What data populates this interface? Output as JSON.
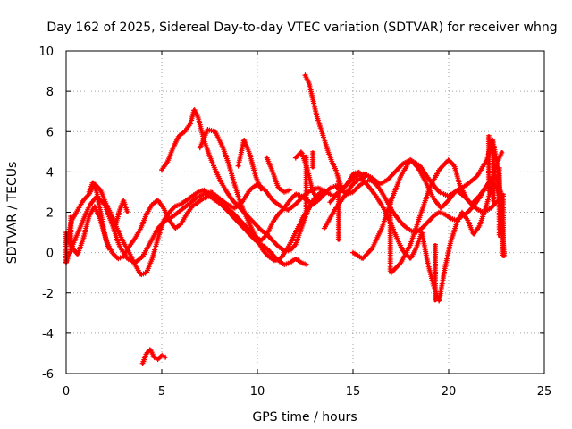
{
  "chart_data": {
    "type": "scatter",
    "title": "Day 162 of 2025, Sidereal Day-to-day VTEC variation (SDTVAR) for receiver whng",
    "xlabel": "GPS time / hours",
    "ylabel": "SDTVAR / TECUs",
    "xlim": [
      0,
      25
    ],
    "ylim": [
      -6,
      10
    ],
    "x_ticks": [
      0,
      5,
      10,
      15,
      20,
      25
    ],
    "y_ticks": [
      -6,
      -4,
      -2,
      0,
      2,
      4,
      6,
      8,
      10
    ],
    "grid": true,
    "marker": "plus",
    "color": "#ff0000",
    "series": [
      {
        "name": "trace-1",
        "x": [
          0.0,
          0.3,
          0.6,
          0.9,
          1.2,
          1.5,
          1.8,
          2.1,
          2.4,
          2.7,
          3.0,
          3.3,
          3.6,
          3.9,
          4.2,
          4.5,
          4.8,
          5.1,
          5.4,
          5.7,
          6.0,
          6.3,
          6.6,
          6.9,
          7.2,
          7.5,
          7.8,
          8.1,
          8.4,
          8.7,
          9.0,
          9.3,
          9.6,
          9.9,
          10.2,
          10.5,
          10.8,
          11.1,
          11.4,
          11.7,
          12.0,
          12.3,
          12.6
        ],
        "y": [
          0.5,
          1.6,
          2.1,
          2.6,
          2.9,
          3.4,
          3.1,
          2.4,
          1.8,
          1.1,
          0.5,
          0.0,
          -0.6,
          -1.1,
          -1.0,
          -0.3,
          0.7,
          1.6,
          2.0,
          2.3,
          2.4,
          2.6,
          2.8,
          3.0,
          3.1,
          2.9,
          2.7,
          2.4,
          2.1,
          1.8,
          1.5,
          1.2,
          0.9,
          0.6,
          0.4,
          0.2,
          -0.1,
          -0.4,
          -0.6,
          -0.5,
          -0.3,
          -0.5,
          -0.6
        ]
      },
      {
        "name": "trace-2",
        "x": [
          0.0,
          0.4,
          0.8,
          1.2,
          1.6,
          2.0,
          2.4,
          2.8,
          3.2,
          3.6,
          4.0,
          4.4,
          4.8,
          5.2,
          5.6,
          6.0,
          6.4,
          6.8,
          7.2,
          7.6,
          8.0,
          8.4,
          8.8,
          9.2,
          9.6,
          10.0,
          10.4,
          10.8,
          11.2,
          11.6,
          12.0,
          12.4,
          12.8,
          13.2,
          13.6,
          14.0,
          14.4,
          14.8,
          15.2,
          15.6,
          16.0,
          16.4,
          16.8,
          17.2,
          17.6,
          18.0,
          18.4,
          18.8,
          19.2,
          19.6,
          20.0,
          20.4,
          20.8,
          21.2,
          21.6,
          22.0,
          22.4,
          22.8
        ],
        "y": [
          -0.5,
          0.5,
          1.4,
          2.3,
          2.8,
          2.4,
          1.4,
          0.3,
          -0.3,
          -0.5,
          -0.2,
          0.5,
          1.2,
          1.6,
          1.8,
          2.1,
          2.4,
          2.7,
          2.9,
          3.0,
          2.7,
          2.4,
          2.2,
          2.5,
          3.1,
          3.4,
          3.1,
          2.6,
          2.3,
          2.1,
          2.4,
          2.8,
          3.1,
          3.2,
          3.0,
          2.8,
          3.1,
          3.5,
          3.8,
          3.9,
          3.7,
          3.4,
          3.6,
          4.0,
          4.4,
          4.6,
          4.2,
          3.5,
          2.7,
          2.2,
          2.6,
          3.1,
          2.8,
          2.4,
          2.8,
          3.3,
          3.9,
          2.8
        ]
      },
      {
        "name": "trace-3",
        "x": [
          0.0,
          0.3,
          0.6,
          0.9,
          1.2,
          1.5,
          1.8,
          2.1,
          2.4,
          2.7,
          3.0,
          3.3,
          3.6,
          3.9,
          4.2,
          4.5,
          4.8,
          5.1,
          5.4,
          5.7,
          6.0,
          6.3,
          6.6,
          6.9,
          7.2,
          7.5,
          7.8,
          8.1,
          8.4,
          8.7,
          9.0,
          9.3,
          9.6,
          9.9,
          10.2,
          10.5,
          10.8,
          11.1,
          11.4,
          11.7,
          12.0,
          12.3,
          12.6,
          12.9,
          13.2,
          13.5,
          13.8,
          14.1,
          14.4,
          14.7,
          15.0,
          15.3,
          15.6,
          15.9,
          16.2,
          16.5,
          16.8,
          17.1,
          17.4,
          17.7,
          18.0,
          18.3,
          18.6,
          18.9,
          19.2,
          19.5,
          19.8,
          20.1,
          20.4,
          20.7,
          21.0,
          21.3,
          21.6,
          21.9,
          22.2,
          22.5,
          22.8
        ],
        "y": [
          0.8,
          0.3,
          -0.1,
          0.7,
          1.8,
          2.3,
          1.6,
          0.6,
          0.0,
          -0.3,
          -0.2,
          0.3,
          0.7,
          1.2,
          1.9,
          2.4,
          2.6,
          2.2,
          1.6,
          1.2,
          1.4,
          1.9,
          2.3,
          2.5,
          2.7,
          2.8,
          2.6,
          2.4,
          2.2,
          2.0,
          1.7,
          1.4,
          1.1,
          0.8,
          0.6,
          0.9,
          1.5,
          1.9,
          2.2,
          2.6,
          2.9,
          2.8,
          2.6,
          2.4,
          2.6,
          2.9,
          3.2,
          3.3,
          3.1,
          2.9,
          3.0,
          3.3,
          3.5,
          3.6,
          3.4,
          3.0,
          2.5,
          2.0,
          1.6,
          1.3,
          1.1,
          1.0,
          1.2,
          1.5,
          1.8,
          2.0,
          1.9,
          1.7,
          1.6,
          1.8,
          2.0,
          2.3,
          2.7,
          3.2,
          3.6,
          3.2,
          2.3
        ]
      },
      {
        "name": "trace-4",
        "x": [
          5.0,
          5.3,
          5.6,
          5.9,
          6.2,
          6.5,
          6.7,
          6.9,
          7.2,
          7.5,
          7.8,
          8.1,
          8.4,
          8.7,
          9.0,
          9.3,
          9.6,
          9.9,
          10.2,
          10.5,
          10.8,
          11.1,
          11.4,
          11.7,
          12.0,
          12.3,
          12.6,
          12.9,
          13.2,
          13.5
        ],
        "y": [
          4.1,
          4.5,
          5.2,
          5.8,
          6.0,
          6.4,
          7.1,
          6.7,
          5.6,
          4.8,
          4.1,
          3.5,
          3.0,
          2.6,
          2.3,
          2.0,
          1.7,
          1.4,
          1.1,
          0.9,
          0.6,
          0.3,
          0.1,
          0.1,
          0.4,
          1.2,
          2.0,
          2.6,
          2.9,
          3.1
        ]
      },
      {
        "name": "trace-5",
        "x": [
          7.0,
          7.4,
          7.8,
          8.2,
          8.5,
          8.8,
          9.1,
          9.4,
          9.7,
          10.0,
          10.3,
          10.6,
          10.9,
          11.2,
          11.5,
          11.8,
          12.1,
          12.4,
          12.7,
          13.0,
          13.3
        ],
        "y": [
          5.2,
          6.1,
          6.0,
          5.2,
          4.4,
          3.4,
          2.5,
          1.8,
          1.2,
          0.6,
          0.1,
          -0.2,
          -0.4,
          -0.3,
          0.1,
          0.6,
          1.2,
          1.8,
          2.2,
          2.6,
          3.0
        ]
      },
      {
        "name": "trace-6",
        "x": [
          12.5,
          12.7,
          12.9,
          13.1,
          13.3,
          13.5,
          13.7,
          13.9,
          14.1,
          14.3,
          14.5
        ],
        "y": [
          8.8,
          8.4,
          7.6,
          6.8,
          6.2,
          5.6,
          5.0,
          4.5,
          4.1,
          3.5,
          3.0
        ]
      },
      {
        "name": "trace-7",
        "x": [
          13.5,
          13.8,
          14.1,
          14.4,
          14.7,
          15.0,
          15.4,
          15.8,
          16.2,
          16.6,
          17.0,
          17.3,
          17.6,
          18.0,
          18.3,
          18.6,
          18.9,
          19.2,
          19.5,
          19.8,
          20.1,
          20.4,
          20.7,
          21.0,
          21.3,
          21.6,
          21.9,
          22.2,
          22.5,
          22.8
        ],
        "y": [
          1.2,
          1.7,
          2.2,
          2.6,
          3.0,
          3.4,
          3.7,
          3.3,
          2.8,
          2.2,
          1.4,
          0.7,
          0.1,
          -0.3,
          0.2,
          1.0,
          -0.5,
          -1.6,
          -2.4,
          -0.8,
          0.5,
          1.4,
          2.0,
          1.6,
          0.9,
          1.3,
          2.1,
          3.1,
          4.4,
          5.0
        ]
      },
      {
        "name": "trace-8",
        "x": [
          15.0,
          15.5,
          16.0,
          16.5,
          17.0,
          17.5,
          18.0,
          18.5,
          19.0,
          19.5,
          20.0,
          20.5,
          21.0,
          21.5,
          22.0,
          22.3,
          22.6,
          22.9
        ],
        "y": [
          0.0,
          -0.3,
          0.2,
          1.2,
          2.6,
          3.8,
          4.6,
          4.3,
          3.6,
          3.0,
          2.8,
          3.1,
          3.4,
          3.8,
          4.6,
          5.6,
          4.1,
          -0.2
        ]
      },
      {
        "name": "trace-9",
        "x": [
          17.0,
          17.5,
          18.0,
          18.5,
          19.0,
          19.5,
          20.0,
          20.3,
          20.6,
          21.0,
          21.4,
          21.8,
          22.2,
          22.6
        ],
        "y": [
          -1.0,
          -0.5,
          0.4,
          1.8,
          3.2,
          4.1,
          4.6,
          4.3,
          3.3,
          2.6,
          2.2,
          2.0,
          2.2,
          2.6
        ]
      },
      {
        "name": "trace-10",
        "x": [
          4.0,
          4.2,
          4.4,
          4.6,
          4.8,
          5.0,
          5.2
        ],
        "y": [
          -5.5,
          -5.0,
          -4.8,
          -5.2,
          -5.3,
          -5.1,
          -5.2
        ]
      },
      {
        "name": "trace-11",
        "x": [
          1.2,
          1.4,
          1.6,
          1.8,
          2.0,
          2.2
        ],
        "y": [
          3.0,
          3.5,
          3.0,
          2.0,
          1.0,
          0.2
        ]
      },
      {
        "name": "trace-12",
        "x": [
          2.6,
          2.8,
          3.0,
          3.2
        ],
        "y": [
          1.4,
          2.1,
          2.6,
          2.0
        ]
      },
      {
        "name": "trace-13",
        "x": [
          9.0,
          9.3,
          9.6,
          9.9,
          10.2
        ],
        "y": [
          4.3,
          5.6,
          4.9,
          3.8,
          3.1
        ]
      },
      {
        "name": "trace-14",
        "x": [
          10.5,
          10.8,
          11.1,
          11.4,
          11.7
        ],
        "y": [
          4.7,
          4.0,
          3.2,
          3.0,
          3.1
        ]
      },
      {
        "name": "trace-15",
        "x": [
          12.0,
          12.3,
          12.6,
          12.9,
          13.2
        ],
        "y": [
          4.7,
          5.0,
          4.2,
          3.0,
          2.6
        ]
      },
      {
        "name": "trace-16",
        "x": [
          13.8,
          14.1,
          14.4,
          14.7,
          15.0,
          15.3,
          15.6
        ],
        "y": [
          2.5,
          2.8,
          3.1,
          3.4,
          3.9,
          4.0,
          3.7
        ]
      }
    ],
    "segments": [
      {
        "x": 0.0,
        "y": [
          -0.5,
          1.0
        ]
      },
      {
        "x": 0.25,
        "y": [
          0.0,
          1.8
        ]
      },
      {
        "x": 12.55,
        "y": [
          2.0,
          4.8
        ]
      },
      {
        "x": 12.9,
        "y": [
          4.2,
          5.0
        ]
      },
      {
        "x": 14.25,
        "y": [
          0.6,
          3.5
        ]
      },
      {
        "x": 16.95,
        "y": [
          -1.0,
          2.6
        ]
      },
      {
        "x": 19.3,
        "y": [
          -2.4,
          0.4
        ]
      },
      {
        "x": 22.1,
        "y": [
          3.0,
          5.8
        ]
      },
      {
        "x": 22.35,
        "y": [
          2.5,
          5.2
        ]
      },
      {
        "x": 22.65,
        "y": [
          0.8,
          4.2
        ]
      },
      {
        "x": 22.85,
        "y": [
          -0.2,
          2.9
        ]
      }
    ]
  }
}
